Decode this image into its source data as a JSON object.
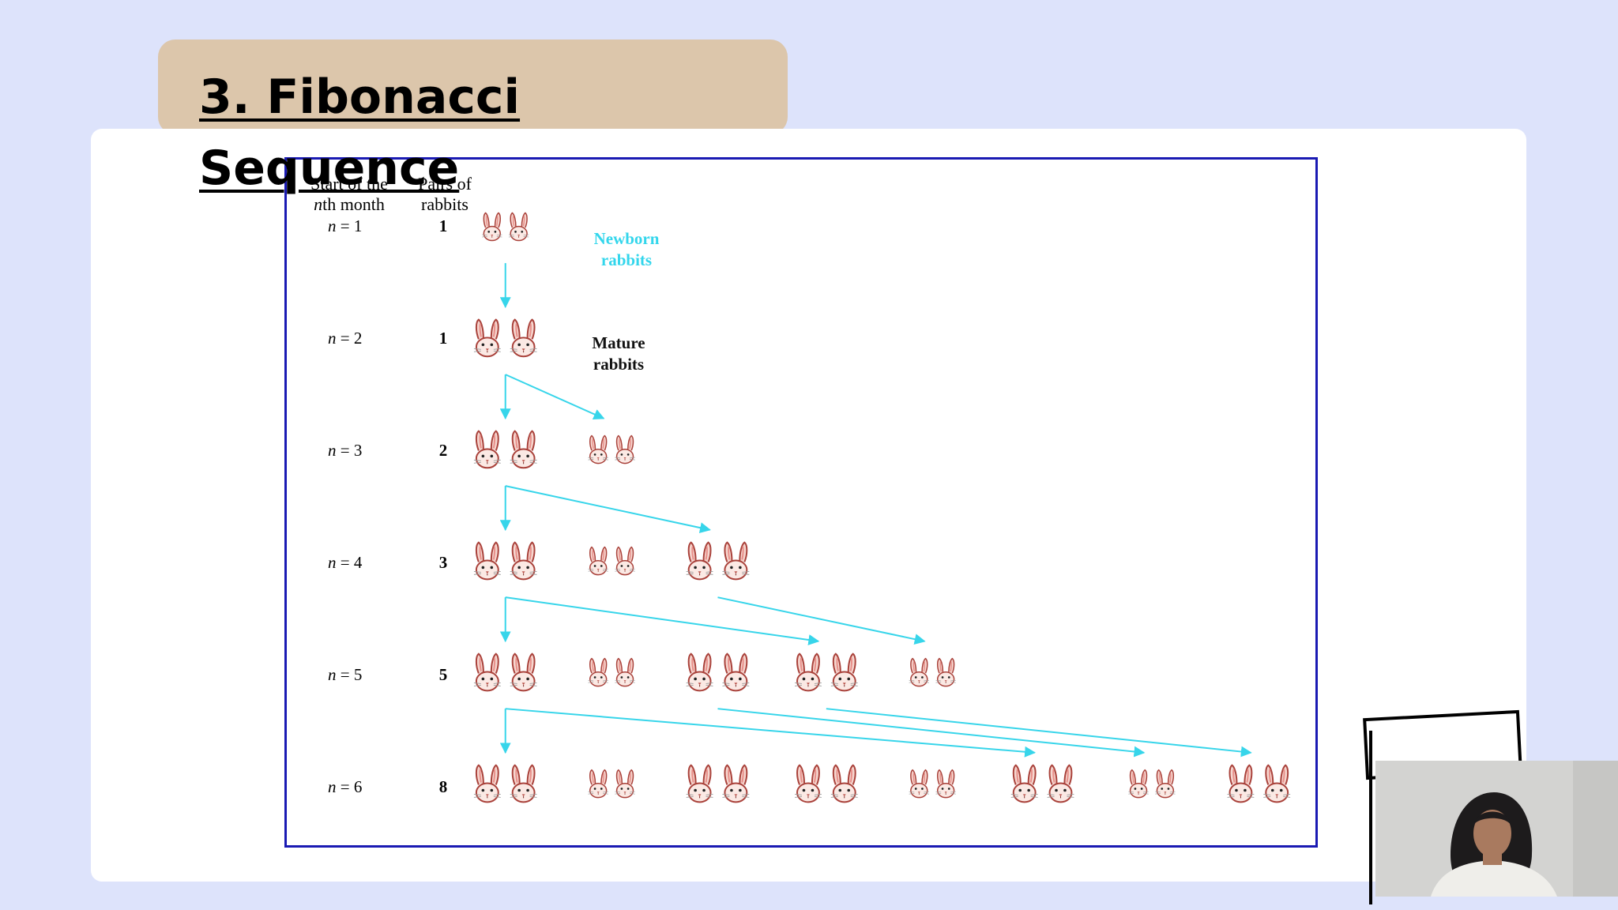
{
  "slide": {
    "title": "3. Fibonacci Sequence"
  },
  "diagram": {
    "header_month": "Start of the nth month",
    "header_month_line1": "Start of the",
    "header_month_line2_var": "n",
    "header_month_line2_rest": "th month",
    "header_pairs_line1": "Pairs of",
    "header_pairs_line2": "rabbits",
    "label_newborn": "Newborn rabbits",
    "label_newborn_line1": "Newborn",
    "label_newborn_line2": "rabbits",
    "label_mature_line1": "Mature",
    "label_mature_line2": "rabbits",
    "rows": [
      {
        "n_var": "n",
        "n_rest": " = 1",
        "pairs": "1"
      },
      {
        "n_var": "n",
        "n_rest": " = 2",
        "pairs": "1"
      },
      {
        "n_var": "n",
        "n_rest": " = 3",
        "pairs": "2"
      },
      {
        "n_var": "n",
        "n_rest": " = 4",
        "pairs": "3"
      },
      {
        "n_var": "n",
        "n_rest": " = 5",
        "pairs": "5"
      },
      {
        "n_var": "n",
        "n_rest": " = 6",
        "pairs": "8"
      }
    ],
    "pairs_by_month": [
      [
        "newborn"
      ],
      [
        "mature"
      ],
      [
        "mature",
        "newborn"
      ],
      [
        "mature",
        "newborn",
        "mature"
      ],
      [
        "mature",
        "newborn",
        "mature",
        "mature",
        "newborn"
      ],
      [
        "mature",
        "newborn",
        "mature",
        "mature",
        "newborn",
        "mature",
        "newborn",
        "mature"
      ]
    ],
    "colors": {
      "arrow": "#37d5ea",
      "frame": "#1a1ab3",
      "rabbit_outline": "#a9413a",
      "rabbit_fill": "#f6d6cf"
    }
  }
}
